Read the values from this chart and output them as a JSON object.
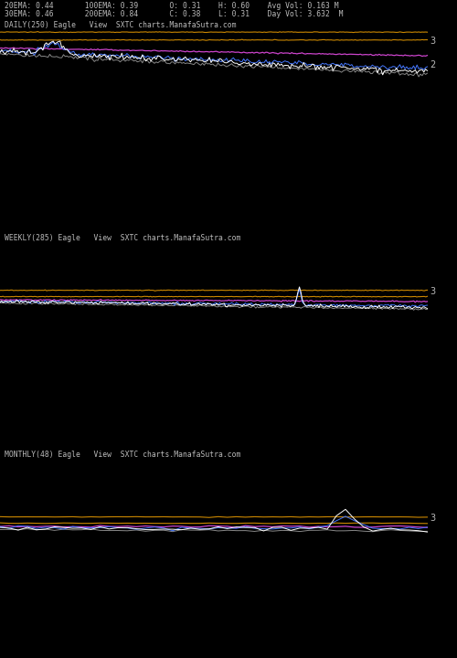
{
  "bg_color": "#000000",
  "text_color": "#bbbbbb",
  "panel_labels": [
    "DAILY(250) Eagle   View  SXTC charts.ManafaSutra.com",
    "WEEKLY(285) Eagle   View  SXTC charts.ManafaSutra.com",
    "MONTHLY(48) Eagle   View  SXTC charts.ManafaSutra.com"
  ],
  "header_line1": "20EMA: 0.44       100EMA: 0.39       O: 0.31    H: 0.60    Avg Vol: 0.163 M",
  "header_line2": "30EMA: 0.46       200EMA: 0.84       C: 0.38    L: 0.31    Day Vol: 3.632  M",
  "line_colors": {
    "white": "#ffffff",
    "blue": "#4477ff",
    "magenta": "#cc44cc",
    "orange": "#cc8800",
    "gray": "#888888",
    "darkblue": "#223355"
  }
}
